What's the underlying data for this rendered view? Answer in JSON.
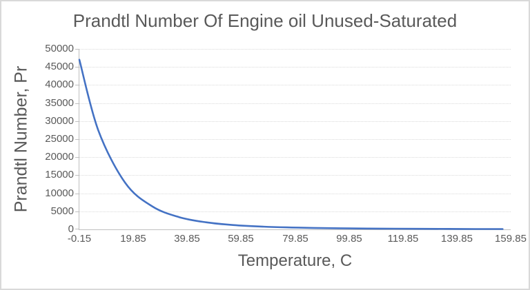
{
  "window": {
    "background_color": "#FFFFFF",
    "border_color": "#D9D9D9"
  },
  "chart": {
    "title": "Prandtl Number Of Engine oil Unused-Saturated",
    "title_color": "#595959",
    "text_color": "#595959",
    "gridline_color": "#D9D9D9",
    "axis_line_color": "#BFBFBF",
    "line_color": "#4472C4"
  },
  "chart_data": {
    "type": "line",
    "title": "Prandtl Number Of Engine oil Unused-Saturated",
    "xlabel": "Temperature, C",
    "ylabel": "Prandtl Number, Pr",
    "x": [
      -0.15,
      6.85,
      16.85,
      26.85,
      36.85,
      46.85,
      56.85,
      66.85,
      76.85,
      86.85,
      96.85,
      106.85,
      116.85,
      126.85,
      136.85,
      146.85,
      156.85
    ],
    "series": [
      {
        "name": "Prandtl Number, Pr",
        "values": [
          47000,
          27500,
          12900,
          6400,
          3400,
          1965,
          1205,
          793,
          546,
          395,
          300,
          233,
          187,
          152,
          125,
          103,
          88
        ]
      }
    ],
    "xlim": [
      -0.15,
      159.85
    ],
    "ylim": [
      0,
      50000
    ],
    "y_tick_step": 5000,
    "x_tick_labels": [
      "-0.15",
      "19.85",
      "39.85",
      "59.85",
      "79.85",
      "99.85",
      "119.85",
      "139.85",
      "159.85"
    ],
    "y_tick_labels": [
      "0",
      "5000",
      "10000",
      "15000",
      "20000",
      "25000",
      "30000",
      "35000",
      "40000",
      "45000",
      "50000"
    ],
    "grid": "horizontal",
    "legend": false,
    "smooth": true,
    "line_color": "#4472C4"
  }
}
